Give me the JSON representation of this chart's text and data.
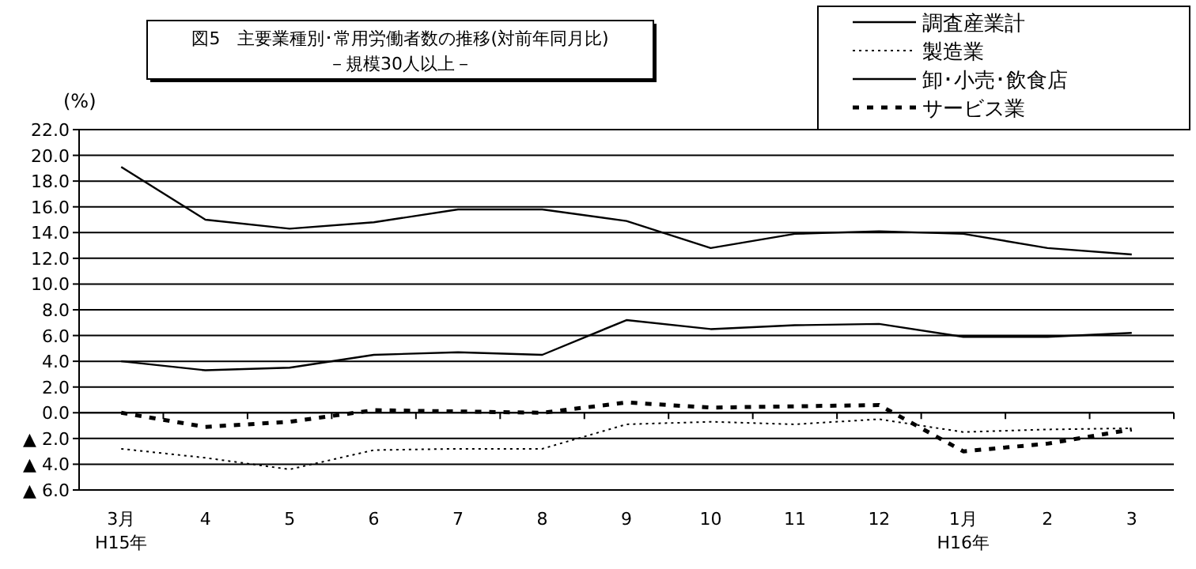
{
  "chart_data": {
    "type": "line",
    "title": "図5　主要業種別･常用労働者数の推移(対前年同月比)",
    "subtitle": "－規模30人以上－",
    "ylabel": "(%)",
    "categories": [
      "3月\nH15年",
      "4",
      "5",
      "6",
      "7",
      "8",
      "9",
      "10",
      "11",
      "12",
      "1月\nH16年",
      "2",
      "3"
    ],
    "series": [
      {
        "name": "調査産業計",
        "color": "#000000",
        "line_style": "solid",
        "values": [
          4.0,
          3.3,
          3.5,
          4.5,
          4.7,
          4.5,
          7.2,
          6.5,
          6.8,
          6.9,
          5.9,
          5.9,
          6.2
        ]
      },
      {
        "name": "製造業",
        "color": "#000000",
        "line_style": "dotted",
        "values": [
          -2.8,
          -3.5,
          -4.4,
          -2.9,
          -2.8,
          -2.8,
          -0.9,
          -0.7,
          -0.9,
          -0.5,
          -1.5,
          -1.3,
          -1.2
        ]
      },
      {
        "name": "卸･小売･飲食店",
        "color": "#000000",
        "line_style": "solid",
        "values": [
          19.1,
          15.0,
          14.3,
          14.8,
          15.8,
          15.8,
          14.9,
          12.8,
          13.9,
          14.1,
          13.9,
          12.8,
          12.3
        ]
      },
      {
        "name": "サービス業",
        "color": "#000000",
        "line_style": "dashed",
        "values": [
          0.0,
          -1.1,
          -0.7,
          0.2,
          0.1,
          0.0,
          0.8,
          0.4,
          0.5,
          0.6,
          -3.0,
          -2.4,
          -1.3
        ]
      }
    ],
    "ylim": [
      -6,
      22
    ],
    "yticks": [
      {
        "value": -6,
        "label": "▲ 6.0"
      },
      {
        "value": -4,
        "label": "▲ 4.0"
      },
      {
        "value": -2,
        "label": "▲ 2.0"
      },
      {
        "value": 0,
        "label": "0.0"
      },
      {
        "value": 2,
        "label": "2.0"
      },
      {
        "value": 4,
        "label": "4.0"
      },
      {
        "value": 6,
        "label": "6.0"
      },
      {
        "value": 8,
        "label": "8.0"
      },
      {
        "value": 10,
        "label": "10.0"
      },
      {
        "value": 12,
        "label": "12.0"
      },
      {
        "value": 14,
        "label": "14.0"
      },
      {
        "value": 16,
        "label": "16.0"
      },
      {
        "value": 18,
        "label": "18.0"
      },
      {
        "value": 20,
        "label": "20.0"
      },
      {
        "value": 22,
        "label": "22.0"
      }
    ],
    "grid": "y",
    "legend": "top right"
  }
}
